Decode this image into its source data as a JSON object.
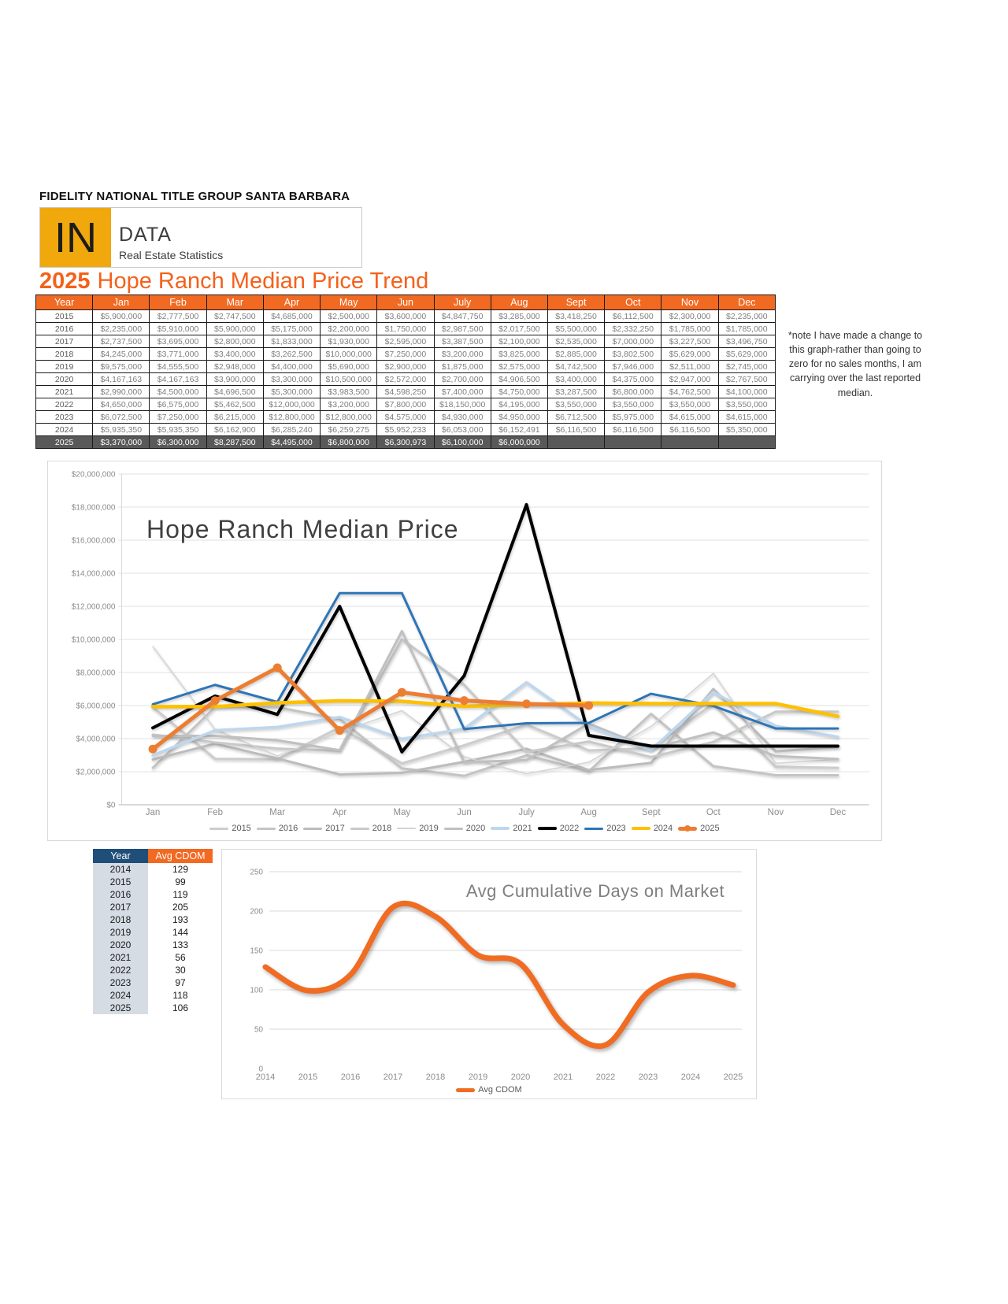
{
  "page": {
    "header": "FIDELITY NATIONAL TITLE GROUP SANTA BARBARA",
    "logo": {
      "mark": "IN",
      "name": "DATA",
      "tagline": "Real Estate Statistics"
    },
    "title_year": "2025",
    "title_rest": "Hope Ranch Median Price Trend",
    "note": "*note I have made a change to this graph-rather than going to zero for no sales months, I am carrying over the last reported median."
  },
  "price_table": {
    "columns": [
      "Year",
      "Jan",
      "Feb",
      "Mar",
      "Apr",
      "May",
      "Jun",
      "July",
      "Aug",
      "Sept",
      "Oct",
      "Nov",
      "Dec"
    ]
  },
  "cdom_table": {
    "columns": [
      "Year",
      "Avg CDOM"
    ]
  },
  "colors": {
    "orange_header": "#F26921",
    "title_orange": "#F4611B",
    "navy": "#1F4E79",
    "highlight_row": "#595959"
  },
  "chart_data": [
    {
      "type": "line",
      "title": "Hope Ranch Median Price",
      "x": [
        "Jan",
        "Feb",
        "Mar",
        "Apr",
        "May",
        "Jun",
        "July",
        "Aug",
        "Sept",
        "Oct",
        "Nov",
        "Dec"
      ],
      "ylim": [
        0,
        20000000
      ],
      "ytick_step": 2000000,
      "grid": true,
      "legend_position": "bottom",
      "series": [
        {
          "name": "2015",
          "color": "#cdcdcd",
          "width": 3,
          "values": [
            5900000,
            2777500,
            2747500,
            4685000,
            2500000,
            3600000,
            4847750,
            3285000,
            3418250,
            6112500,
            2300000,
            2235000
          ]
        },
        {
          "name": "2016",
          "color": "#c4c4c4",
          "width": 3,
          "values": [
            2235000,
            5910000,
            5900000,
            5175000,
            2200000,
            1750000,
            2987500,
            2017500,
            5500000,
            2332250,
            1785000,
            1785000
          ]
        },
        {
          "name": "2017",
          "color": "#bcbcbc",
          "width": 3,
          "values": [
            2737500,
            3695000,
            2800000,
            1833000,
            1930000,
            2595000,
            3387500,
            2100000,
            2535000,
            7000000,
            3227500,
            3496750
          ]
        },
        {
          "name": "2018",
          "color": "#c9c9c9",
          "width": 3,
          "values": [
            4245000,
            3771000,
            3400000,
            3262500,
            10000000,
            7250000,
            3200000,
            3825000,
            2885000,
            3802500,
            5629000,
            5629000
          ]
        },
        {
          "name": "2019",
          "color": "#d4d4d4",
          "width": 1.5,
          "values": [
            9575000,
            4555500,
            2948000,
            4400000,
            5690000,
            2900000,
            1875000,
            2575000,
            4742500,
            7946000,
            2511000,
            2745000
          ]
        },
        {
          "name": "2020",
          "color": "#c0c0c0",
          "width": 3,
          "values": [
            4167163,
            4167163,
            3900000,
            3300000,
            10500000,
            2572000,
            2700000,
            4906500,
            3400000,
            4375000,
            2947000,
            2767500
          ]
        },
        {
          "name": "2021",
          "color": "#BDD7EE",
          "width": 3.5,
          "values": [
            2990000,
            4500000,
            4696500,
            5300000,
            3983500,
            4598250,
            7400000,
            4750000,
            3287500,
            6800000,
            4762500,
            4100000
          ]
        },
        {
          "name": "2022",
          "color": "#000000",
          "width": 4,
          "values": [
            4650000,
            6575000,
            5462500,
            12000000,
            3200000,
            7800000,
            18150000,
            4195000,
            3550000,
            3550000,
            3550000,
            3550000
          ]
        },
        {
          "name": "2023",
          "color": "#2E75B6",
          "width": 3,
          "values": [
            6072500,
            7250000,
            6215000,
            12800000,
            12800000,
            4575000,
            4930000,
            4950000,
            6712500,
            5975000,
            4615000,
            4615000
          ]
        },
        {
          "name": "2024",
          "color": "#FFC000",
          "width": 4.5,
          "values": [
            5935350,
            5935350,
            6162900,
            6285240,
            6259275,
            5952233,
            6053000,
            6152491,
            6116500,
            6116500,
            6116500,
            5350000
          ]
        },
        {
          "name": "2025",
          "color": "#ED7D31",
          "width": 5,
          "markers": true,
          "highlight": true,
          "values": [
            3370000,
            6300000,
            8287500,
            4495000,
            6800000,
            6300973,
            6100000,
            6000000,
            null,
            null,
            null,
            null
          ]
        }
      ]
    },
    {
      "type": "line",
      "title": "Avg Cumulative Days on Market",
      "x": [
        "2014",
        "2015",
        "2016",
        "2017",
        "2018",
        "2019",
        "2020",
        "2021",
        "2022",
        "2023",
        "2024",
        "2025"
      ],
      "ylim": [
        0,
        250
      ],
      "ytick_step": 50,
      "grid": true,
      "legend_position": "bottom",
      "series": [
        {
          "name": "Avg CDOM",
          "color": "#F06C22",
          "width": 7,
          "smooth": true,
          "values": [
            129,
            99,
            119,
            205,
            193,
            144,
            133,
            56,
            30,
            97,
            118,
            106
          ]
        }
      ]
    }
  ]
}
